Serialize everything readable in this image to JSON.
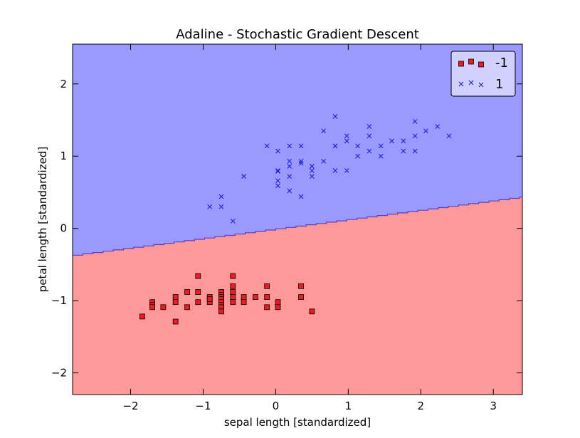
{
  "chart_data": {
    "type": "scatter",
    "title": "Adaline - Stochastic Gradient Descent",
    "xlabel": "sepal length [standardized]",
    "ylabel": "petal length [standardized]",
    "xlim": [
      -2.8,
      3.4
    ],
    "ylim": [
      -2.3,
      2.55
    ],
    "xticks": [
      -2,
      -1,
      0,
      1,
      2,
      3
    ],
    "yticks": [
      -2,
      -1,
      0,
      1,
      2
    ],
    "x_tick_labels": [
      "−2",
      "−1",
      "0",
      "1",
      "2",
      "3"
    ],
    "y_tick_labels": [
      "−2",
      "−1",
      "0",
      "1",
      "2"
    ],
    "grid": false,
    "legend_position": "top-right",
    "decision_boundary": {
      "type": "linear",
      "y_at_xmin": -0.38,
      "y_at_xmax": 0.43,
      "upper_region_class": "1",
      "lower_region_class": "-1",
      "upper_color": "#9999ff",
      "lower_color": "#ff9999",
      "line_color": "#5a3fc0"
    },
    "series": [
      {
        "name": "-1",
        "marker": "square",
        "color": "#ee1c24",
        "points": [
          [
            -1.84,
            -1.22
          ],
          [
            -1.7,
            -1.02
          ],
          [
            -1.7,
            -1.06
          ],
          [
            -1.7,
            -1.09
          ],
          [
            -1.55,
            -1.09
          ],
          [
            -1.38,
            -0.95
          ],
          [
            -1.38,
            -1.02
          ],
          [
            -1.38,
            -1.29
          ],
          [
            -1.22,
            -0.88
          ],
          [
            -1.22,
            -1.09
          ],
          [
            -1.07,
            -0.66
          ],
          [
            -1.07,
            -0.88
          ],
          [
            -1.07,
            -1.02
          ],
          [
            -0.91,
            -0.95
          ],
          [
            -0.91,
            -1.02
          ],
          [
            -0.91,
            -0.98
          ],
          [
            -0.75,
            -0.88
          ],
          [
            -0.75,
            -0.92
          ],
          [
            -0.75,
            -0.95
          ],
          [
            -0.75,
            -0.98
          ],
          [
            -0.75,
            -1.02
          ],
          [
            -0.75,
            -1.06
          ],
          [
            -0.75,
            -1.09
          ],
          [
            -0.75,
            -1.15
          ],
          [
            -0.59,
            -0.66
          ],
          [
            -0.59,
            -0.8
          ],
          [
            -0.59,
            -0.88
          ],
          [
            -0.59,
            -0.95
          ],
          [
            -0.59,
            -1.02
          ],
          [
            -0.44,
            -0.95
          ],
          [
            -0.44,
            -1.02
          ],
          [
            -0.28,
            -0.95
          ],
          [
            -0.12,
            -0.8
          ],
          [
            -0.12,
            -0.95
          ],
          [
            -0.12,
            -1.09
          ],
          [
            0.03,
            -1.02
          ],
          [
            0.03,
            -1.09
          ],
          [
            0.35,
            -0.8
          ],
          [
            0.35,
            -0.95
          ],
          [
            0.5,
            -1.15
          ]
        ]
      },
      {
        "name": "1",
        "marker": "x",
        "color": "#1f1fd6",
        "points": [
          [
            -0.91,
            0.3
          ],
          [
            -0.75,
            0.3
          ],
          [
            -0.75,
            0.44
          ],
          [
            -0.59,
            0.1
          ],
          [
            -0.44,
            0.72
          ],
          [
            -0.12,
            1.14
          ],
          [
            0.03,
            1.07
          ],
          [
            0.03,
            0.8
          ],
          [
            0.03,
            0.79
          ],
          [
            0.03,
            0.66
          ],
          [
            0.03,
            0.59
          ],
          [
            0.19,
            1.14
          ],
          [
            0.19,
            0.93
          ],
          [
            0.19,
            0.86
          ],
          [
            0.19,
            0.72
          ],
          [
            0.19,
            0.52
          ],
          [
            0.35,
            1.14
          ],
          [
            0.35,
            0.93
          ],
          [
            0.35,
            0.9
          ],
          [
            0.35,
            0.44
          ],
          [
            0.5,
            0.86
          ],
          [
            0.5,
            0.8
          ],
          [
            0.5,
            0.72
          ],
          [
            0.66,
            1.35
          ],
          [
            0.66,
            0.93
          ],
          [
            0.82,
            1.55
          ],
          [
            0.82,
            1.14
          ],
          [
            0.82,
            1.14
          ],
          [
            0.82,
            0.8
          ],
          [
            0.98,
            1.28
          ],
          [
            0.98,
            1.21
          ],
          [
            0.98,
            0.8
          ],
          [
            1.13,
            1.14
          ],
          [
            1.13,
            1.0
          ],
          [
            1.29,
            1.41
          ],
          [
            1.29,
            1.28
          ],
          [
            1.29,
            1.07
          ],
          [
            1.45,
            1.14
          ],
          [
            1.45,
            1.0
          ],
          [
            1.6,
            1.21
          ],
          [
            1.76,
            1.21
          ],
          [
            1.76,
            1.07
          ],
          [
            1.92,
            1.48
          ],
          [
            1.92,
            1.28
          ],
          [
            1.92,
            1.07
          ],
          [
            2.07,
            1.35
          ],
          [
            2.23,
            1.41
          ],
          [
            2.39,
            1.28
          ]
        ]
      }
    ]
  }
}
